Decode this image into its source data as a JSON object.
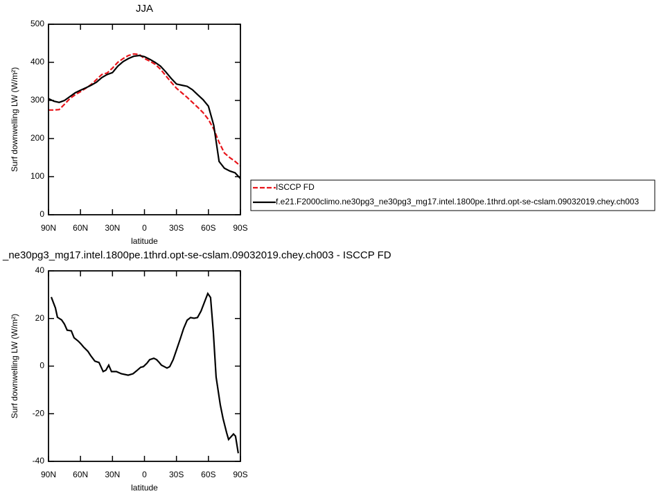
{
  "chart_data": [
    {
      "type": "line",
      "title": "JJA",
      "xlabel": "latitude",
      "ylabel": "Surf downwelling LW (W/m²)",
      "x": [
        90,
        85,
        80,
        75,
        70,
        65,
        60,
        55,
        50,
        45,
        40,
        35,
        30,
        25,
        20,
        15,
        10,
        5,
        0,
        -5,
        -10,
        -15,
        -20,
        -25,
        -30,
        -35,
        -40,
        -45,
        -50,
        -55,
        -60,
        -65,
        -70,
        -75,
        -80,
        -85,
        -90
      ],
      "series": [
        {
          "name": "ISCCP FD",
          "color": "#e8141a",
          "dash": true,
          "values": [
            275,
            275,
            276,
            290,
            305,
            315,
            323,
            332,
            342,
            355,
            368,
            372,
            385,
            400,
            410,
            418,
            422,
            421,
            410,
            403,
            395,
            382,
            365,
            348,
            332,
            320,
            308,
            295,
            282,
            268,
            250,
            225,
            190,
            162,
            150,
            140,
            128
          ]
        },
        {
          "name": "f.e21.F2000climo.ne30pg3_ne30pg3_mg17.intel.1800pe.1thrd.opt-se-cslam.09032019.chey.ch003",
          "color": "#000000",
          "dash": false,
          "values": [
            305,
            298,
            295,
            300,
            310,
            320,
            327,
            333,
            340,
            348,
            360,
            368,
            373,
            390,
            402,
            410,
            416,
            418,
            415,
            408,
            400,
            390,
            375,
            358,
            343,
            340,
            337,
            328,
            315,
            302,
            285,
            235,
            140,
            122,
            115,
            110,
            95
          ]
        }
      ],
      "xlim": [
        90,
        -90
      ],
      "xticks": [
        {
          "value": 90,
          "label": "90N"
        },
        {
          "value": 60,
          "label": "60N"
        },
        {
          "value": 30,
          "label": "30N"
        },
        0,
        {
          "value": -30,
          "label": "30S"
        },
        {
          "value": -60,
          "label": "60S"
        },
        {
          "value": -90,
          "label": "90S"
        }
      ],
      "ylim": [
        0,
        500
      ],
      "yticks": [
        0,
        100,
        200,
        300,
        400,
        500
      ],
      "legend": "right"
    },
    {
      "type": "line",
      "title": "_ne30pg3_mg17.intel.1800pe.1thrd.opt-se-cslam.09032019.chey.ch003 - ISCCP FD",
      "xlabel": "latitude",
      "ylabel": "Surf downwelling LW (W/m²)",
      "x": [
        87.4,
        83.5,
        81.6,
        77.7,
        75.1,
        72.5,
        68.6,
        66.0,
        62.1,
        59.5,
        56.9,
        53.0,
        50.4,
        46.5,
        42.6,
        38.7,
        36.1,
        33.5,
        30.9,
        26.3,
        21.8,
        15.3,
        10.7,
        7.5,
        3.6,
        1.0,
        -2.3,
        -4.9,
        -8.8,
        -11.4,
        -13.3,
        -15.9,
        -18.5,
        -21.1,
        -23.7,
        -26.9,
        -30.2,
        -33.5,
        -36.7,
        -40.0,
        -43.2,
        -46.5,
        -49.7,
        -53.0,
        -56.2,
        -59.4,
        -62.0,
        -64.6,
        -67.2,
        -71.1,
        -73.7,
        -77.0,
        -78.9,
        -83.5,
        -85.4,
        -88.0
      ],
      "series": [
        {
          "color": "#000000",
          "dash": false,
          "values": [
            29.0,
            24.4,
            20.5,
            19.4,
            17.7,
            15.1,
            14.8,
            11.9,
            10.5,
            9.3,
            7.9,
            6.2,
            4.4,
            2.1,
            1.5,
            -2.3,
            -1.7,
            0.4,
            -2.3,
            -2.3,
            -3.2,
            -3.8,
            -3.2,
            -2.0,
            -0.5,
            -0.2,
            1.2,
            2.7,
            3.3,
            2.7,
            1.8,
            0.4,
            -0.2,
            -0.8,
            -0.2,
            2.7,
            7.0,
            11.4,
            15.8,
            19.3,
            20.4,
            20.1,
            20.4,
            23.1,
            26.8,
            30.5,
            28.8,
            14.3,
            -4.6,
            -16.2,
            -22.0,
            -27.9,
            -30.8,
            -28.5,
            -29.4,
            -36.6
          ]
        }
      ],
      "xlim": [
        90,
        -90
      ],
      "xticks": [
        {
          "value": 90,
          "label": "90N"
        },
        {
          "value": 60,
          "label": "60N"
        },
        {
          "value": 30,
          "label": "30N"
        },
        0,
        {
          "value": -30,
          "label": "30S"
        },
        {
          "value": -60,
          "label": "60S"
        },
        {
          "value": -90,
          "label": "90S"
        }
      ],
      "ylim": [
        -40,
        40
      ],
      "yticks": [
        -40,
        -20,
        0,
        20,
        40
      ]
    }
  ]
}
